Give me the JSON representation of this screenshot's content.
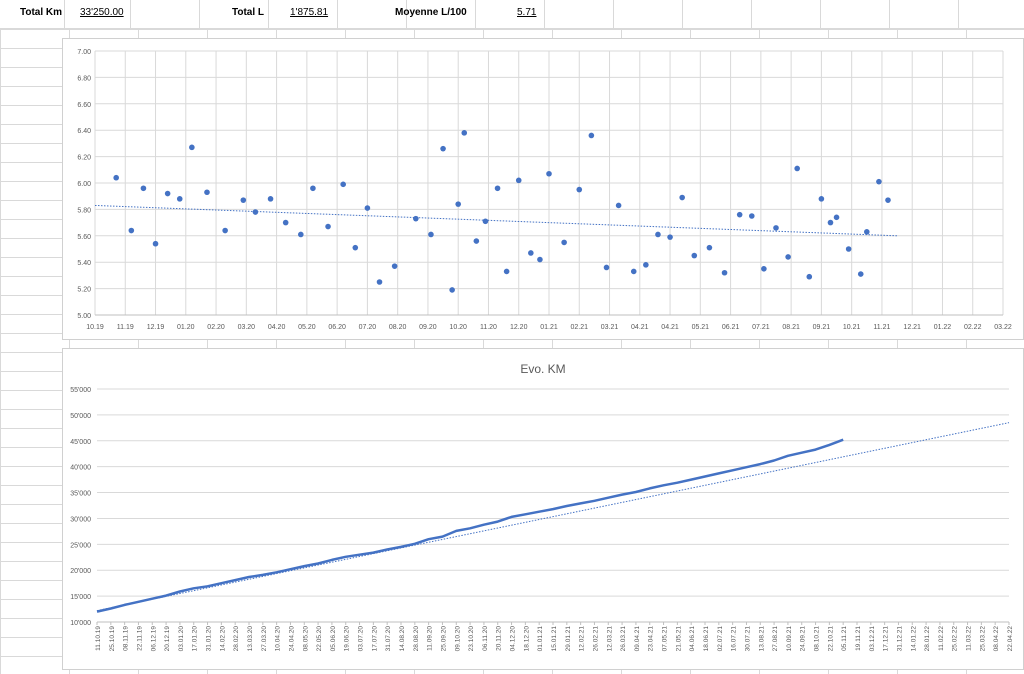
{
  "summary": {
    "total_km_label": "Total Km",
    "total_km_value": "33'250.00",
    "total_l_label": "Total  L",
    "total_l_value": "1'875.81",
    "avg_label": "Moyenne L/100",
    "avg_value": "5.71"
  },
  "chart_data": [
    {
      "type": "scatter",
      "title": "",
      "xlabel": "",
      "ylabel": "",
      "x_tick_labels": [
        "10.19",
        "11.19",
        "12.19",
        "01.20",
        "02.20",
        "03.20",
        "04.20",
        "05.20",
        "06.20",
        "07.20",
        "08.20",
        "09.20",
        "10.20",
        "11.20",
        "12.20",
        "01.21",
        "02.21",
        "03.21",
        "04.21",
        "04.21",
        "05.21",
        "06.21",
        "07.21",
        "08.21",
        "09.21",
        "10.21",
        "11.21",
        "12.21",
        "01.22",
        "02.22",
        "03.22"
      ],
      "y_tick_labels": [
        "5.00",
        "5.20",
        "5.40",
        "5.60",
        "5.80",
        "6.00",
        "6.20",
        "6.40",
        "6.60",
        "6.80",
        "7.00"
      ],
      "ylim": [
        5.0,
        7.0
      ],
      "grid": true,
      "trendline": {
        "style": "dotted linear",
        "start": 5.83,
        "end": 5.6
      },
      "values": [
        6.04,
        5.64,
        5.96,
        5.54,
        5.92,
        5.88,
        6.27,
        5.93,
        5.64,
        5.87,
        5.78,
        5.88,
        5.7,
        5.61,
        5.96,
        5.67,
        5.99,
        5.51,
        5.81,
        5.25,
        5.37,
        5.73,
        5.61,
        6.26,
        5.19,
        5.84,
        6.38,
        5.56,
        5.71,
        5.96,
        5.33,
        6.02,
        5.47,
        5.42,
        6.07,
        5.55,
        5.95,
        6.36,
        5.36,
        5.83,
        5.33,
        5.38,
        5.61,
        5.59,
        5.89,
        5.45,
        5.51,
        5.32,
        5.76,
        5.75,
        5.35,
        5.66,
        5.44,
        6.11,
        5.29,
        5.88,
        5.7,
        5.74,
        5.5,
        5.31,
        5.63,
        6.01,
        5.87
      ],
      "x_positions": [
        0.7,
        1.2,
        1.6,
        2.0,
        2.4,
        2.8,
        3.2,
        3.7,
        4.3,
        4.9,
        5.3,
        5.8,
        6.3,
        6.8,
        7.2,
        7.7,
        8.2,
        8.6,
        9.0,
        9.4,
        9.9,
        10.6,
        11.1,
        11.5,
        11.8,
        12.0,
        12.2,
        12.6,
        12.9,
        13.3,
        13.6,
        14.0,
        14.4,
        14.7,
        15.0,
        15.5,
        16.0,
        16.4,
        16.9,
        17.3,
        17.8,
        18.2,
        18.6,
        19.0,
        19.4,
        19.8,
        20.3,
        20.8,
        21.3,
        21.7,
        22.1,
        22.5,
        22.9,
        23.2,
        23.6,
        24.0,
        24.3,
        24.5,
        24.9,
        25.3,
        25.5,
        25.9,
        26.2
      ]
    },
    {
      "type": "line",
      "title": "Evo. KM",
      "xlabel": "",
      "ylabel": "",
      "x_tick_labels": [
        "11.10.19",
        "25.10.19",
        "08.11.19",
        "22.11.19",
        "06.12.19",
        "20.12.19",
        "03.01.20",
        "17.01.20",
        "31.01.20",
        "14.02.20",
        "28.02.20",
        "13.03.20",
        "27.03.20",
        "10.04.20",
        "24.04.20",
        "08.05.20",
        "22.05.20",
        "05.06.20",
        "19.06.20",
        "03.07.20",
        "17.07.20",
        "31.07.20",
        "14.08.20",
        "28.08.20",
        "11.09.20",
        "25.09.20",
        "09.10.20",
        "23.10.20",
        "06.11.20",
        "20.11.20",
        "04.12.20",
        "18.12.20",
        "01.01.21",
        "15.01.21",
        "29.01.21",
        "12.02.21",
        "26.02.21",
        "12.03.21",
        "26.03.21",
        "09.04.21",
        "23.04.21",
        "07.05.21",
        "21.05.21",
        "04.06.21",
        "18.06.21",
        "02.07.21",
        "16.07.21",
        "30.07.21",
        "13.08.21",
        "27.08.21",
        "10.09.21",
        "24.09.21",
        "08.10.21",
        "22.10.21",
        "05.11.21",
        "19.11.21",
        "03.12.21",
        "17.12.21",
        "31.12.21",
        "14.01.22",
        "28.01.22",
        "11.02.22",
        "25.02.22",
        "11.03.22",
        "25.03.22",
        "08.04.22",
        "22.04.22"
      ],
      "y_tick_labels": [
        "10'000",
        "15'000",
        "20'000",
        "25'000",
        "30'000",
        "35'000",
        "40'000",
        "45'000",
        "50'000",
        "55'000"
      ],
      "ylim": [
        10000,
        55000
      ],
      "grid": true,
      "trendline": {
        "style": "dotted linear",
        "start": 12200,
        "end": 48500
      },
      "series": [
        {
          "values": [
            12000,
            12600,
            13300,
            13900,
            14500,
            15100,
            15900,
            16500,
            16900,
            17500,
            18100,
            18700,
            19100,
            19600,
            20200,
            20800,
            21300,
            22000,
            22600,
            23000,
            23400,
            24000,
            24500,
            25100,
            26000,
            26500,
            27600,
            28100,
            28800,
            29400,
            30300,
            30800,
            31300,
            31800,
            32400,
            32900,
            33400,
            34000,
            34600,
            35100,
            35800,
            36400,
            36900,
            37500,
            38100,
            38700,
            39300,
            39900,
            40500,
            41200,
            42100,
            42700,
            43300,
            44200,
            45200
          ]
        }
      ]
    }
  ]
}
